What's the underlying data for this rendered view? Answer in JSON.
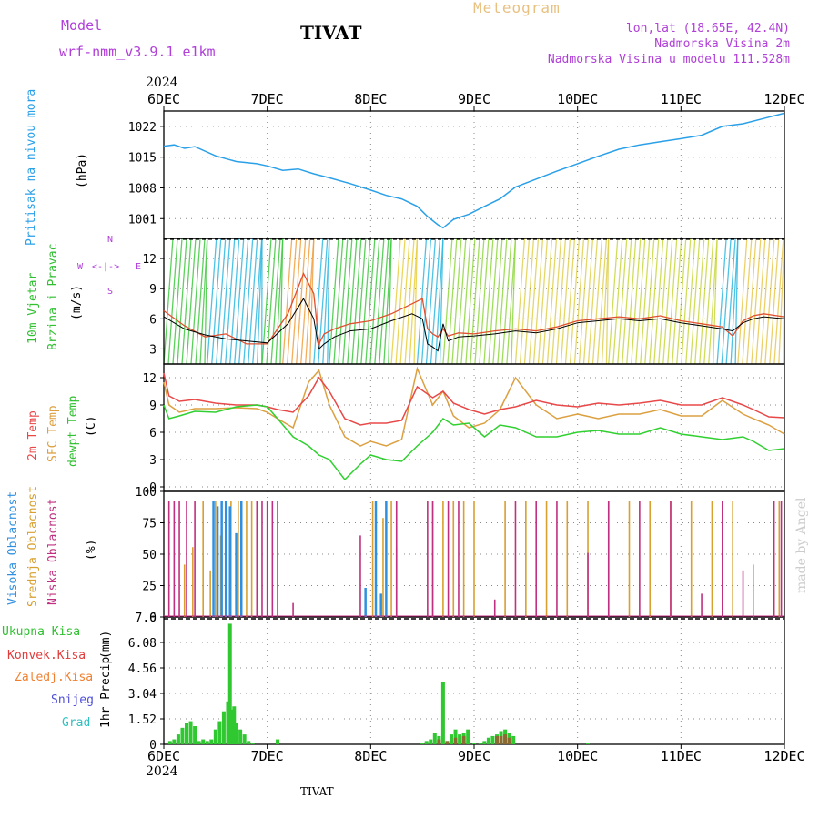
{
  "header": {
    "model_label": "Model",
    "model_name": "wrf-nmm_v3.9.1 e1km",
    "station": "TIVAT",
    "product": "Meteogram",
    "coords": "lon,lat (18.65E, 42.4N)",
    "elev": "Nadmorska Visina 2m",
    "elev_model": "Nadmorska Visina u modelu 111.528m"
  },
  "footer": {
    "station": "TIVAT",
    "credit": "made by Angel"
  },
  "colors": {
    "pressure": "#2aa0e8",
    "temp2m": "#e84848",
    "sfc": "#dca040",
    "dew": "#30d030",
    "cloud_high": "#3090e0",
    "cloud_mid": "#d8a030",
    "cloud_low": "#c03080",
    "precip_total": "#30c830",
    "precip_conv": "#e03c3c",
    "precip_frz": "#f08030",
    "snow": "#5050d8",
    "grad": "#30c0c0",
    "purple": "#b040d8"
  },
  "chart_data": [
    {
      "type": "line",
      "panel": "pressure",
      "ylabel": "Pritisak na nivou mora",
      "unit": "(hPa)",
      "yticks": [
        1001,
        1008,
        1015,
        1022
      ],
      "ylim": [
        996.5,
        1025.5
      ],
      "x_days": [
        0,
        0.1,
        0.2,
        0.3,
        0.5,
        0.7,
        0.9,
        1.0,
        1.15,
        1.3,
        1.45,
        1.6,
        1.8,
        2.0,
        2.15,
        2.3,
        2.45,
        2.55,
        2.65,
        2.7,
        2.8,
        2.95,
        3.1,
        3.25,
        3.4,
        3.6,
        3.8,
        4.0,
        4.2,
        4.4,
        4.6,
        4.8,
        5.0,
        5.2,
        5.4,
        5.6,
        5.8,
        6.0
      ],
      "series": [
        {
          "values": [
            1017.5,
            1017.8,
            1017.0,
            1017.4,
            1015.3,
            1014.0,
            1013.5,
            1013.0,
            1012.0,
            1012.3,
            1011.2,
            1010.3,
            1009.0,
            1007.5,
            1006.3,
            1005.5,
            1003.8,
            1001.5,
            999.6,
            998.9,
            1000.8,
            1002.0,
            1003.8,
            1005.5,
            1008.2,
            1010.0,
            1011.8,
            1013.5,
            1015.2,
            1016.8,
            1017.8,
            1018.5,
            1019.2,
            1020.0,
            1022.0,
            1022.6,
            1023.8,
            1025.0
          ]
        }
      ]
    },
    {
      "type": "line",
      "panel": "wind",
      "ylabel": "10m Vjetar Brzina i Pravac",
      "unit": "(m/s)",
      "yticks": [
        3,
        6,
        9,
        12
      ],
      "ylim": [
        1.5,
        14
      ],
      "compass": {
        "n": "N",
        "w": "W",
        "e": "E",
        "s": "S"
      },
      "x_days": [
        0,
        0.2,
        0.4,
        0.6,
        0.8,
        1.0,
        1.2,
        1.35,
        1.45,
        1.5,
        1.55,
        1.65,
        1.8,
        2.0,
        2.2,
        2.4,
        2.5,
        2.55,
        2.6,
        2.65,
        2.7,
        2.75,
        2.85,
        3.0,
        3.2,
        3.4,
        3.6,
        3.8,
        4.0,
        4.2,
        4.4,
        4.6,
        4.8,
        5.0,
        5.2,
        5.4,
        5.5,
        5.6,
        5.7,
        5.8,
        6.0
      ],
      "series": [
        {
          "name": "speed",
          "values": [
            6.8,
            5.3,
            4.2,
            4.5,
            3.5,
            3.5,
            6.5,
            10.5,
            8.5,
            3.5,
            4.5,
            5.0,
            5.5,
            5.8,
            6.5,
            7.5,
            8.0,
            5.0,
            4.5,
            4.2,
            5.0,
            4.3,
            4.6,
            4.5,
            4.8,
            5.0,
            4.8,
            5.2,
            5.8,
            6.0,
            6.2,
            6.0,
            6.3,
            5.8,
            5.5,
            5.2,
            4.3,
            5.8,
            6.3,
            6.5,
            6.2
          ]
        },
        {
          "name": "gust",
          "values": [
            6.2,
            5.0,
            4.4,
            4.0,
            3.8,
            3.6,
            5.5,
            8.0,
            6.0,
            3.0,
            3.5,
            4.2,
            4.8,
            5.0,
            5.8,
            6.5,
            6.0,
            3.5,
            3.2,
            2.8,
            5.5,
            3.8,
            4.2,
            4.3,
            4.5,
            4.8,
            4.6,
            5.0,
            5.6,
            5.8,
            6.0,
            5.8,
            6.0,
            5.6,
            5.3,
            5.0,
            4.8,
            5.6,
            6.0,
            6.2,
            6.0
          ]
        }
      ]
    },
    {
      "type": "line",
      "panel": "temperature",
      "ylabels": [
        "2m Temp",
        "SFC Temp",
        "dewpt Temp"
      ],
      "unit": "(C)",
      "yticks": [
        0,
        3,
        6,
        9,
        12
      ],
      "ylim": [
        -0.5,
        13.5
      ],
      "x_days": [
        0,
        0.05,
        0.15,
        0.3,
        0.5,
        0.7,
        0.9,
        1.0,
        1.1,
        1.25,
        1.4,
        1.5,
        1.6,
        1.75,
        1.9,
        2.0,
        2.15,
        2.3,
        2.45,
        2.6,
        2.7,
        2.8,
        2.95,
        3.1,
        3.25,
        3.4,
        3.6,
        3.8,
        4.0,
        4.2,
        4.4,
        4.6,
        4.8,
        5.0,
        5.2,
        5.4,
        5.6,
        5.7,
        5.85,
        6.0
      ],
      "series": [
        {
          "name": "2m Temp",
          "values": [
            12.5,
            10.0,
            9.4,
            9.6,
            9.2,
            9.0,
            9.0,
            8.8,
            8.5,
            8.2,
            10.0,
            12.0,
            10.5,
            7.5,
            6.8,
            7.0,
            7.0,
            7.3,
            11.0,
            9.8,
            10.5,
            9.2,
            8.5,
            8.0,
            8.5,
            8.8,
            9.5,
            9.0,
            8.8,
            9.2,
            9.0,
            9.2,
            9.5,
            9.0,
            9.0,
            9.8,
            9.0,
            8.5,
            7.7,
            7.6
          ]
        },
        {
          "name": "SFC Temp",
          "values": [
            11.5,
            9.0,
            8.2,
            8.6,
            8.6,
            8.7,
            8.6,
            8.2,
            7.5,
            6.5,
            11.5,
            12.8,
            9.0,
            5.5,
            4.5,
            5.0,
            4.5,
            5.2,
            13.0,
            9.0,
            10.5,
            7.8,
            6.5,
            7.0,
            8.5,
            12.0,
            9.0,
            7.5,
            8.0,
            7.5,
            8.0,
            8.0,
            8.5,
            7.8,
            7.8,
            9.5,
            8.0,
            7.5,
            6.8,
            5.8
          ]
        },
        {
          "name": "dewpt Temp",
          "values": [
            9.0,
            7.5,
            7.8,
            8.3,
            8.2,
            8.8,
            9.0,
            8.8,
            7.5,
            5.5,
            4.5,
            3.5,
            3.0,
            0.8,
            2.5,
            3.5,
            3.0,
            2.8,
            4.5,
            6.0,
            7.5,
            6.8,
            7.0,
            5.5,
            6.8,
            6.5,
            5.5,
            5.5,
            6.0,
            6.2,
            5.8,
            5.8,
            6.5,
            5.8,
            5.5,
            5.2,
            5.5,
            5.0,
            4.0,
            4.2
          ]
        }
      ]
    },
    {
      "type": "bar",
      "panel": "clouds",
      "ylabels": [
        "Visoka Oblacnost",
        "Srednja Oblacnost",
        "Niska Oblacnost"
      ],
      "unit": "(%)",
      "yticks": [
        0,
        25,
        50,
        75,
        100
      ],
      "ylim": [
        0,
        100
      ],
      "series": [
        {
          "name": "Visoka Oblacnost",
          "x_days": [
            0.48,
            0.52,
            0.56,
            0.6,
            0.64,
            0.7,
            0.75,
            1.95,
            2.05,
            2.1,
            2.15
          ],
          "values": [
            100,
            95,
            100,
            100,
            95,
            72,
            100,
            25,
            100,
            20,
            100
          ]
        },
        {
          "name": "Srednja Oblacnost",
          "x_days": [
            0.2,
            0.28,
            0.38,
            0.45,
            0.5,
            0.55,
            0.6,
            0.65,
            0.72,
            0.8,
            0.85,
            2.02,
            2.12,
            2.2,
            2.25,
            2.6,
            2.7,
            2.8,
            2.9,
            3.0,
            3.3,
            3.5,
            3.7,
            3.9,
            4.1,
            4.3,
            4.5,
            4.7,
            4.9,
            5.1,
            5.3,
            5.5,
            5.7,
            5.9,
            5.95
          ],
          "values": [
            45,
            60,
            100,
            40,
            100,
            70,
            100,
            100,
            100,
            100,
            100,
            100,
            85,
            100,
            60,
            100,
            100,
            100,
            100,
            100,
            100,
            100,
            100,
            100,
            100,
            100,
            100,
            100,
            100,
            100,
            100,
            100,
            45,
            55,
            100
          ]
        },
        {
          "name": "Niska Oblacnost",
          "x_days": [
            0.05,
            0.1,
            0.15,
            0.22,
            0.3,
            0.9,
            0.95,
            1.0,
            1.05,
            1.1,
            1.25,
            1.9,
            2.05,
            2.25,
            2.55,
            2.6,
            2.75,
            2.85,
            3.2,
            3.4,
            3.6,
            3.8,
            4.1,
            4.3,
            4.6,
            4.9,
            5.2,
            5.4,
            5.6,
            5.9,
            5.97
          ],
          "values": [
            100,
            100,
            100,
            100,
            100,
            100,
            100,
            100,
            100,
            100,
            12,
            70,
            95,
            100,
            100,
            100,
            100,
            100,
            15,
            100,
            100,
            100,
            55,
            100,
            100,
            100,
            20,
            100,
            40,
            100,
            100
          ]
        }
      ]
    },
    {
      "type": "bar",
      "panel": "precip",
      "ylabel": "1hr Precip",
      "unit": "(mm)",
      "yticks": [
        0,
        1.52,
        3.04,
        4.56,
        6.08,
        7.6
      ],
      "ylim": [
        0,
        7.6
      ],
      "legend": [
        "Ukupna Kisa",
        "Konvek.Kisa",
        "Zaledj.Kisa",
        "Snijeg",
        "Grad"
      ],
      "series": [
        {
          "name": "Ukupna Kisa",
          "x_days": [
            0.06,
            0.1,
            0.14,
            0.18,
            0.22,
            0.26,
            0.3,
            0.34,
            0.38,
            0.42,
            0.46,
            0.5,
            0.54,
            0.58,
            0.62,
            0.64,
            0.66,
            0.68,
            0.7,
            0.74,
            0.78,
            0.82,
            0.86,
            1.1,
            2.5,
            2.54,
            2.58,
            2.62,
            2.66,
            2.7,
            2.74,
            2.78,
            2.82,
            2.86,
            2.9,
            2.94,
            3.0,
            3.06,
            3.1,
            3.14,
            3.18,
            3.22,
            3.26,
            3.3,
            3.34,
            3.38,
            4.1
          ],
          "values": [
            0.2,
            0.3,
            0.6,
            1.0,
            1.3,
            1.4,
            1.1,
            0.2,
            0.3,
            0.2,
            0.3,
            0.9,
            1.4,
            2.0,
            2.6,
            7.3,
            2.1,
            2.3,
            1.3,
            0.9,
            0.6,
            0.2,
            0.1,
            0.3,
            0.1,
            0.2,
            0.3,
            0.7,
            0.5,
            3.8,
            0.2,
            0.6,
            0.9,
            0.6,
            0.7,
            0.9,
            0.1,
            0.1,
            0.2,
            0.4,
            0.5,
            0.6,
            0.8,
            0.9,
            0.7,
            0.5,
            0.1
          ]
        },
        {
          "name": "Konvek.Kisa",
          "x_days": [
            2.66,
            2.74,
            2.82,
            2.9,
            3.22,
            3.26,
            3.3,
            3.34
          ],
          "values": [
            0.3,
            0.2,
            0.4,
            0.5,
            0.5,
            0.5,
            0.6,
            0.4
          ]
        }
      ]
    }
  ],
  "xaxis": {
    "year": "2024",
    "labels": [
      "6DEC",
      "7DEC",
      "8DEC",
      "9DEC",
      "10DEC",
      "11DEC",
      "12DEC"
    ]
  }
}
